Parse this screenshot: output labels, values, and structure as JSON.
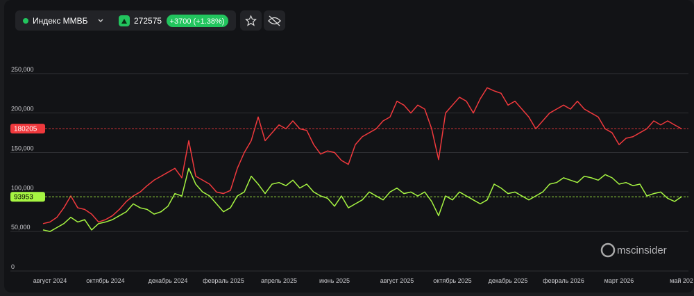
{
  "header": {
    "title": "Индекс ММВБ",
    "value": 272575,
    "change": "+3700 (+1.38%)"
  },
  "brand": "mscinsider",
  "chart_data": {
    "type": "line",
    "categories": [
      null,
      "август 2024",
      null,
      null,
      null,
      null,
      null,
      null,
      null,
      "октябрь 2024",
      null,
      null,
      null,
      null,
      null,
      null,
      null,
      null,
      "декабрь 2024",
      null,
      null,
      null,
      null,
      null,
      null,
      null,
      "февраль 2025",
      null,
      null,
      null,
      null,
      null,
      null,
      null,
      "апрель 2025",
      null,
      null,
      null,
      null,
      null,
      null,
      null,
      "июнь 2025",
      null,
      null,
      null,
      null,
      null,
      null,
      null,
      null,
      "август 2025",
      null,
      null,
      null,
      null,
      null,
      null,
      null,
      "октябрь 2025",
      null,
      null,
      null,
      null,
      null,
      null,
      null,
      "декабрь 2025",
      null,
      null,
      null,
      null,
      null,
      null,
      null,
      "февраль 2026",
      null,
      null,
      null,
      null,
      null,
      null,
      null,
      "март 2026",
      null,
      null,
      null,
      null,
      null,
      null,
      null,
      null,
      "май 202"
    ],
    "series": [
      {
        "color": "#f0393d",
        "marker": 180205,
        "values": [
          60000,
          62000,
          68000,
          80000,
          95000,
          80000,
          78000,
          72000,
          62000,
          65000,
          70000,
          78000,
          88000,
          95000,
          100000,
          108000,
          115000,
          120000,
          125000,
          130000,
          118000,
          165000,
          120000,
          115000,
          110000,
          100000,
          98000,
          102000,
          130000,
          150000,
          165000,
          195000,
          165000,
          175000,
          185000,
          180000,
          190000,
          180000,
          178000,
          160000,
          148000,
          152000,
          150000,
          140000,
          135000,
          160000,
          170000,
          175000,
          180000,
          190000,
          195000,
          215000,
          210000,
          200000,
          210000,
          205000,
          180000,
          141000,
          200000,
          210000,
          220000,
          215000,
          200000,
          218000,
          232000,
          228000,
          225000,
          210000,
          215000,
          205000,
          195000,
          180000,
          190000,
          200000,
          205000,
          210000,
          205000,
          215000,
          205000,
          200000,
          195000,
          180000,
          175000,
          160000,
          168000,
          170000,
          175000,
          180000,
          190000,
          185000,
          190000,
          185000,
          180000
        ]
      },
      {
        "color": "#a6f542",
        "marker": 93953,
        "values": [
          52000,
          50000,
          55000,
          60000,
          68000,
          62000,
          65000,
          52000,
          60000,
          62000,
          65000,
          70000,
          75000,
          85000,
          80000,
          78000,
          72000,
          75000,
          82000,
          98000,
          95000,
          130000,
          110000,
          100000,
          95000,
          85000,
          75000,
          80000,
          95000,
          100000,
          120000,
          110000,
          98000,
          110000,
          112000,
          108000,
          115000,
          105000,
          110000,
          100000,
          95000,
          92000,
          82000,
          95000,
          80000,
          85000,
          90000,
          100000,
          95000,
          90000,
          100000,
          105000,
          98000,
          100000,
          95000,
          100000,
          88000,
          70000,
          95000,
          90000,
          100000,
          95000,
          90000,
          85000,
          90000,
          110000,
          105000,
          98000,
          100000,
          95000,
          90000,
          95000,
          100000,
          110000,
          112000,
          118000,
          115000,
          112000,
          120000,
          118000,
          115000,
          122000,
          118000,
          110000,
          112000,
          108000,
          110000,
          95000,
          98000,
          100000,
          92000,
          88000,
          94000
        ]
      }
    ],
    "ylim": [
      0,
      300000
    ],
    "yticks": [
      0,
      {
        "value": 50000,
        "label": "50,000"
      },
      {
        "value": 100000,
        "label": "100,000"
      },
      {
        "value": 150000,
        "label": "150,000"
      },
      {
        "value": 200000,
        "label": "200,000"
      },
      {
        "value": 250000,
        "label": "250,000"
      }
    ],
    "grid": true
  }
}
